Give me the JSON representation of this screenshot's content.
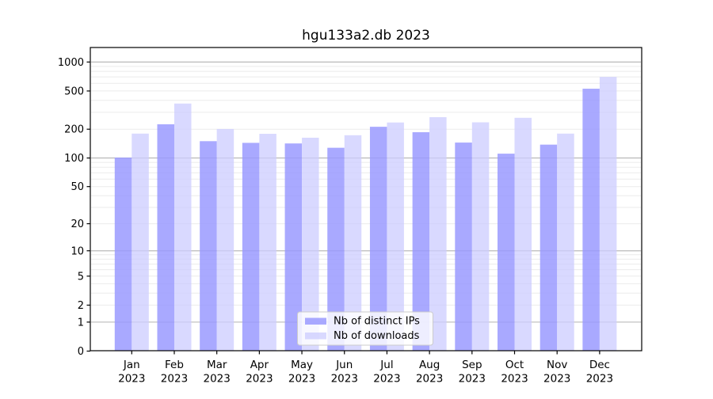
{
  "chart_data": {
    "type": "bar",
    "title": "hgu133a2.db 2023",
    "categories": [
      "Jan",
      "Feb",
      "Mar",
      "Apr",
      "May",
      "Jun",
      "Jul",
      "Aug",
      "Sep",
      "Oct",
      "Nov",
      "Dec"
    ],
    "category_year": "2023",
    "series": [
      {
        "name": "Nb of distinct IPs",
        "color": "#9999ff",
        "opacity": 0.84,
        "values": [
          101,
          225,
          150,
          144,
          142,
          128,
          212,
          186,
          145,
          111,
          138,
          528
        ]
      },
      {
        "name": "Nb of downloads",
        "color": "#ccccff",
        "opacity": 0.75,
        "values": [
          180,
          370,
          201,
          179,
          163,
          173,
          235,
          267,
          236,
          263,
          180,
          700
        ]
      }
    ],
    "yscale": "log10(1+x)",
    "yticks": [
      0,
      1,
      2,
      5,
      10,
      20,
      50,
      100,
      200,
      500,
      1000
    ],
    "ylim": [
      0,
      1416
    ],
    "grid": true,
    "legend_position": "bottom-center",
    "colors": {
      "background": "#ffffff",
      "major_grid": "#b3b3b3",
      "minor_grid": "#ebebeb",
      "axis": "#000000",
      "legend_border": "#cccccc",
      "legend_background": "#ffffff"
    }
  }
}
